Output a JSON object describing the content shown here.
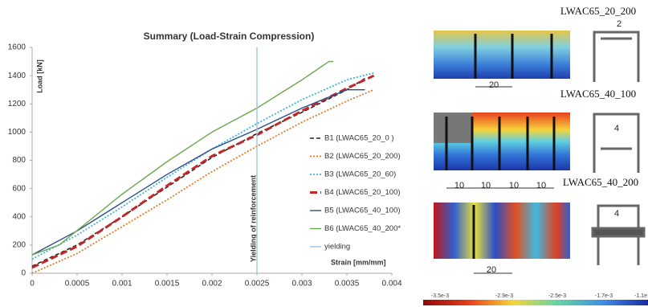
{
  "chart_data": {
    "type": "line",
    "title": "Summary (Load-Strain Compression)",
    "x_label": "Strain [mm/mm]",
    "y_label": "Load [kN]",
    "annotation": "Yielding of reinforcement",
    "xlim": [
      0,
      0.004
    ],
    "ylim": [
      0,
      1600
    ],
    "xticks": [
      0,
      0.0005,
      0.001,
      0.0015,
      0.002,
      0.0025,
      0.003,
      0.0035,
      0.004
    ],
    "yticks": [
      0,
      200,
      400,
      600,
      800,
      1000,
      1200,
      1400,
      1600
    ],
    "grid": false,
    "legend": "right",
    "series": [
      {
        "name": "B1 (LWAC65_20_0 )",
        "color": "#222222",
        "style": "dashed",
        "x": [
          0,
          0.0005,
          0.001,
          0.0015,
          0.002,
          0.0025,
          0.003,
          0.0035,
          0.0037
        ],
        "values": [
          50,
          200,
          400,
          610,
          820,
          990,
          1140,
          1300,
          1380
        ]
      },
      {
        "name": "B2 (LWAC65_20_200)",
        "color": "#e07b2a",
        "style": "dotted",
        "x": [
          0,
          0.0005,
          0.001,
          0.0015,
          0.002,
          0.0025,
          0.003,
          0.0035,
          0.0038
        ],
        "values": [
          0,
          140,
          330,
          520,
          720,
          900,
          1070,
          1220,
          1300
        ]
      },
      {
        "name": "B3 (LWAC65_20_60)",
        "color": "#3fb0e0",
        "style": "dotted",
        "x": [
          0,
          0.0005,
          0.001,
          0.0015,
          0.002,
          0.0025,
          0.003,
          0.0035,
          0.0038
        ],
        "values": [
          100,
          270,
          470,
          680,
          880,
          1060,
          1230,
          1370,
          1420
        ]
      },
      {
        "name": "B4 (LWAC65_20_100)",
        "color": "#c0282a",
        "style": "thick-dashed",
        "x": [
          0,
          0.0005,
          0.001,
          0.0015,
          0.002,
          0.0025,
          0.003,
          0.0035,
          0.0038
        ],
        "values": [
          40,
          190,
          400,
          620,
          830,
          980,
          1150,
          1310,
          1400
        ]
      },
      {
        "name": "B5 (LWAC65_40_100)",
        "color": "#2a4f8a",
        "style": "solid",
        "x": [
          0,
          0.0005,
          0.001,
          0.0015,
          0.002,
          0.0025,
          0.003,
          0.0035,
          0.0037
        ],
        "values": [
          130,
          300,
          500,
          700,
          880,
          1020,
          1170,
          1300,
          1300
        ]
      },
      {
        "name": "B6 (LWAC65_40_200*",
        "color": "#6aa84f",
        "style": "solid",
        "x": [
          0,
          0.0003,
          0.001,
          0.0015,
          0.002,
          0.0025,
          0.003,
          0.0033,
          0.00335
        ],
        "values": [
          130,
          200,
          560,
          790,
          1000,
          1170,
          1370,
          1500,
          1500
        ]
      },
      {
        "name": "yielding",
        "color": "#9cc3e6",
        "style": "solid",
        "x": [
          0.0025,
          0.0025
        ],
        "values": [
          0,
          1600
        ]
      }
    ]
  },
  "panels": [
    {
      "label": "LWAC65_20_200",
      "dims": [
        "20"
      ],
      "section_label": "2"
    },
    {
      "label": "LWAC65_40_100",
      "dims": [
        "10",
        "10",
        "10",
        "10"
      ],
      "section_label": "4"
    },
    {
      "label": "LWAC65_40_200",
      "dims": [
        "20"
      ],
      "section_label": "4"
    }
  ],
  "colorbar_labels": [
    "-3.5e-3",
    "-2.9e-3",
    "-2.5e-3",
    "-1.7e-3",
    "-1.1e"
  ]
}
